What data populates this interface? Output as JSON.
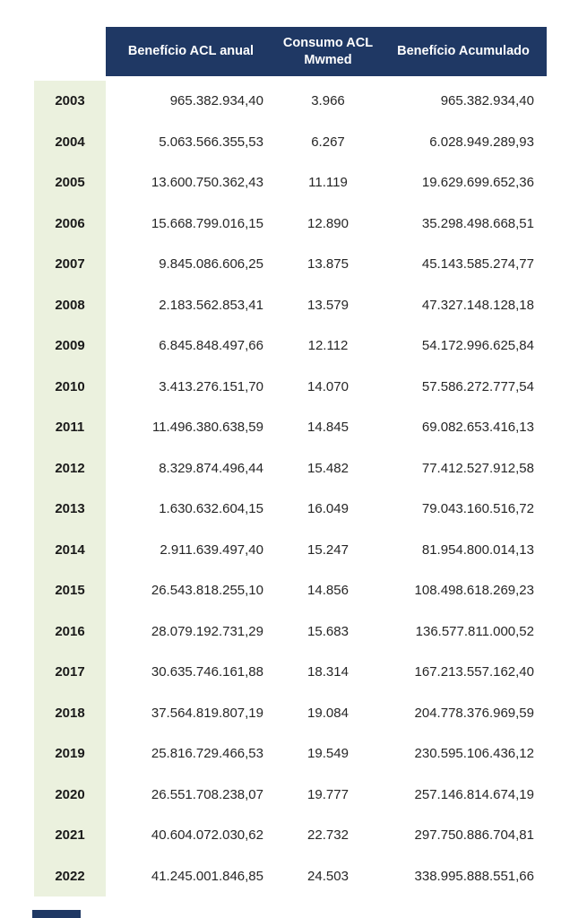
{
  "table": {
    "columns": [
      "Benefício ACL anual",
      "Consumo ACL\nMwmed",
      "Benefício Acumulado"
    ],
    "rows": [
      [
        "2003",
        "965.382.934,40",
        "3.966",
        "965.382.934,40"
      ],
      [
        "2004",
        "5.063.566.355,53",
        "6.267",
        "6.028.949.289,93"
      ],
      [
        "2005",
        "13.600.750.362,43",
        "11.119",
        "19.629.699.652,36"
      ],
      [
        "2006",
        "15.668.799.016,15",
        "12.890",
        "35.298.498.668,51"
      ],
      [
        "2007",
        "9.845.086.606,25",
        "13.875",
        "45.143.585.274,77"
      ],
      [
        "2008",
        "2.183.562.853,41",
        "13.579",
        "47.327.148.128,18"
      ],
      [
        "2009",
        "6.845.848.497,66",
        "12.112",
        "54.172.996.625,84"
      ],
      [
        "2010",
        "3.413.276.151,70",
        "14.070",
        "57.586.272.777,54"
      ],
      [
        "2011",
        "11.496.380.638,59",
        "14.845",
        "69.082.653.416,13"
      ],
      [
        "2012",
        "8.329.874.496,44",
        "15.482",
        "77.412.527.912,58"
      ],
      [
        "2013",
        "1.630.632.604,15",
        "16.049",
        "79.043.160.516,72"
      ],
      [
        "2014",
        "2.911.639.497,40",
        "15.247",
        "81.954.800.014,13"
      ],
      [
        "2015",
        "26.543.818.255,10",
        "14.856",
        "108.498.618.269,23"
      ],
      [
        "2016",
        "28.079.192.731,29",
        "15.683",
        "136.577.811.000,52"
      ],
      [
        "2017",
        "30.635.746.161,88",
        "18.314",
        "167.213.557.162,40"
      ],
      [
        "2018",
        "37.564.819.807,19",
        "19.084",
        "204.778.376.969,59"
      ],
      [
        "2019",
        "25.816.729.466,53",
        "19.549",
        "230.595.106.436,12"
      ],
      [
        "2020",
        "26.551.708.238,07",
        "19.777",
        "257.146.814.674,19"
      ],
      [
        "2021",
        "40.604.072.030,62",
        "22.732",
        "297.750.886.704,81"
      ],
      [
        "2022",
        "41.245.001.846,85",
        "24.503",
        "338.995.888.551,66"
      ]
    ]
  },
  "colors": {
    "header_bg": "#1F3864",
    "header_text": "#FFFFFF",
    "year_bg": "#EBF1DE",
    "body_text": "#262626"
  },
  "chart_data": {
    "type": "table",
    "columns": [
      "Benefício ACL anual",
      "Consumo ACL Mwmed",
      "Benefício Acumulado"
    ],
    "years": [
      2003,
      2004,
      2005,
      2006,
      2007,
      2008,
      2009,
      2010,
      2011,
      2012,
      2013,
      2014,
      2015,
      2016,
      2017,
      2018,
      2019,
      2020,
      2021,
      2022
    ],
    "series": [
      {
        "name": "Benefício ACL anual",
        "values": [
          965382934.4,
          5063566355.53,
          13600750362.43,
          15668799016.15,
          9845086606.25,
          2183562853.41,
          6845848497.66,
          3413276151.7,
          11496380638.59,
          8329874496.44,
          1630632604.15,
          2911639497.4,
          26543818255.1,
          28079192731.29,
          30635746161.88,
          37564819807.19,
          25816729466.53,
          26551708238.07,
          40604072030.62,
          41245001846.85
        ]
      },
      {
        "name": "Consumo ACL Mwmed",
        "values": [
          3966,
          6267,
          11119,
          12890,
          13875,
          13579,
          12112,
          14070,
          14845,
          15482,
          16049,
          15247,
          14856,
          15683,
          18314,
          19084,
          19549,
          19777,
          22732,
          24503
        ]
      },
      {
        "name": "Benefício Acumulado",
        "values": [
          965382934.4,
          6028949289.93,
          19629699652.36,
          35298498668.51,
          45143585274.77,
          47327148128.18,
          54172996625.84,
          57586272777.54,
          69082653416.13,
          77412527912.58,
          79043160516.72,
          81954800014.13,
          108498618269.23,
          136577811000.52,
          167213557162.4,
          204778376969.59,
          230595106436.12,
          257146814674.19,
          297750886704.81,
          338995888551.66
        ]
      }
    ],
    "number_format": "pt-BR (. thousands, , decimals)",
    "title": "",
    "grid": false,
    "legend_position": "none"
  }
}
